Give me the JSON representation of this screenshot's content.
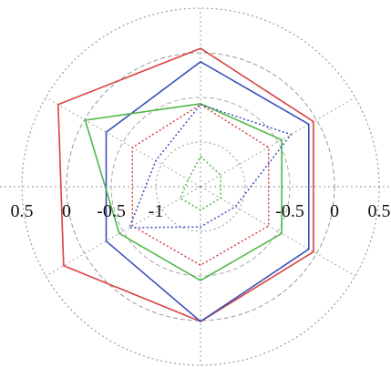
{
  "chart_data": {
    "type": "radar",
    "title": "",
    "axes_count": 6,
    "r_range": [
      -1.5,
      0.5
    ],
    "rings": [
      {
        "r": 0.5,
        "style": "dotted",
        "color": "#888888"
      },
      {
        "r": 0.0,
        "style": "dashed",
        "color": "#999999"
      },
      {
        "r": -0.5,
        "style": "dashed",
        "color": "#aaaaaa"
      },
      {
        "r": -1.0,
        "style": "dotted",
        "color": "#999999"
      }
    ],
    "tick_labels_left": [
      "0.5",
      "0",
      "-0.5",
      "-1"
    ],
    "tick_labels_right": [
      "-0.5",
      "0",
      "0.5"
    ],
    "series": [
      {
        "style": "solid",
        "color": "#d94040",
        "values": [
          0.05,
          -0.04,
          -0.04,
          0.01,
          0.27,
          0.34
        ]
      },
      {
        "style": "solid",
        "color": "#3b4fb8",
        "values": [
          -0.1,
          -0.1,
          -0.1,
          0.01,
          -0.28,
          -0.28
        ]
      },
      {
        "style": "solid",
        "color": "#4fb848",
        "values": [
          -0.57,
          -0.45,
          -0.45,
          -0.45,
          -0.45,
          -0.01
        ]
      },
      {
        "style": "dotted",
        "color": "#d94040",
        "values": [
          -0.58,
          -0.62,
          -0.62,
          -0.62,
          -0.62,
          -0.62
        ]
      },
      {
        "style": "dotted",
        "color": "#3b4fb8",
        "values": [
          -0.58,
          -0.33,
          -1.05,
          -1.05,
          -0.58,
          -0.92
        ]
      },
      {
        "style": "dotted",
        "color": "#4fb848",
        "values": [
          -1.16,
          -1.24,
          -1.24,
          -1.24,
          -1.24,
          -1.34
        ]
      }
    ]
  }
}
